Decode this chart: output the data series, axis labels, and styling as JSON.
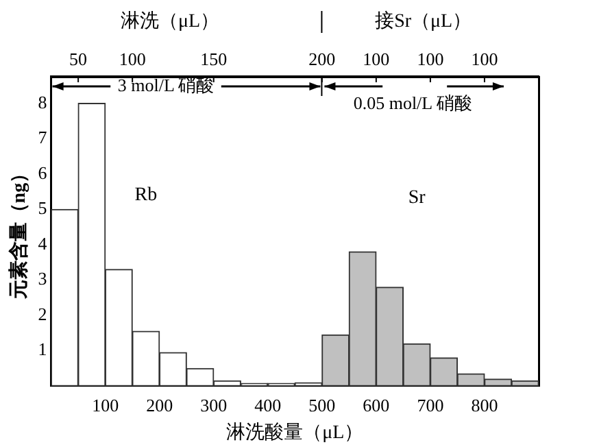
{
  "chart_data": {
    "type": "histogram",
    "xlabel": "淋洗酸量（μL）",
    "ylabel": "元素含量（ng）",
    "annotations": [
      "淋洗（μL）",
      "接Sr（μL）",
      "3 mol/L 硝酸",
      "0.05 mol/L 硝酸",
      "50",
      "100",
      "150",
      "200",
      "100",
      "100",
      "100"
    ],
    "bins": [
      0,
      50,
      100,
      150,
      200,
      250,
      300,
      350,
      400,
      450,
      500,
      550,
      600,
      650,
      700,
      750,
      800,
      850,
      900
    ],
    "series": [
      {
        "name": "Rb",
        "color": "#ffffff",
        "values": [
          5,
          8,
          3.3,
          1.55,
          0.95,
          0.5,
          0.15,
          0.08,
          0.08,
          0.1,
          null,
          null,
          null,
          null,
          null,
          null,
          null,
          null
        ]
      },
      {
        "name": "Sr",
        "color": "#c0c0c0",
        "values": [
          null,
          null,
          null,
          null,
          null,
          null,
          null,
          null,
          null,
          null,
          1.45,
          3.8,
          2.8,
          1.2,
          0.8,
          0.35,
          0.2,
          0.15
        ]
      }
    ],
    "xlim": [
      0,
      900
    ],
    "xticks": [
      100,
      200,
      300,
      400,
      500,
      600,
      700,
      800
    ],
    "ylim": [
      0,
      8.75
    ],
    "yticks": [
      1,
      2,
      3,
      4,
      5,
      6,
      7,
      8
    ],
    "grid": false,
    "legend": false
  }
}
